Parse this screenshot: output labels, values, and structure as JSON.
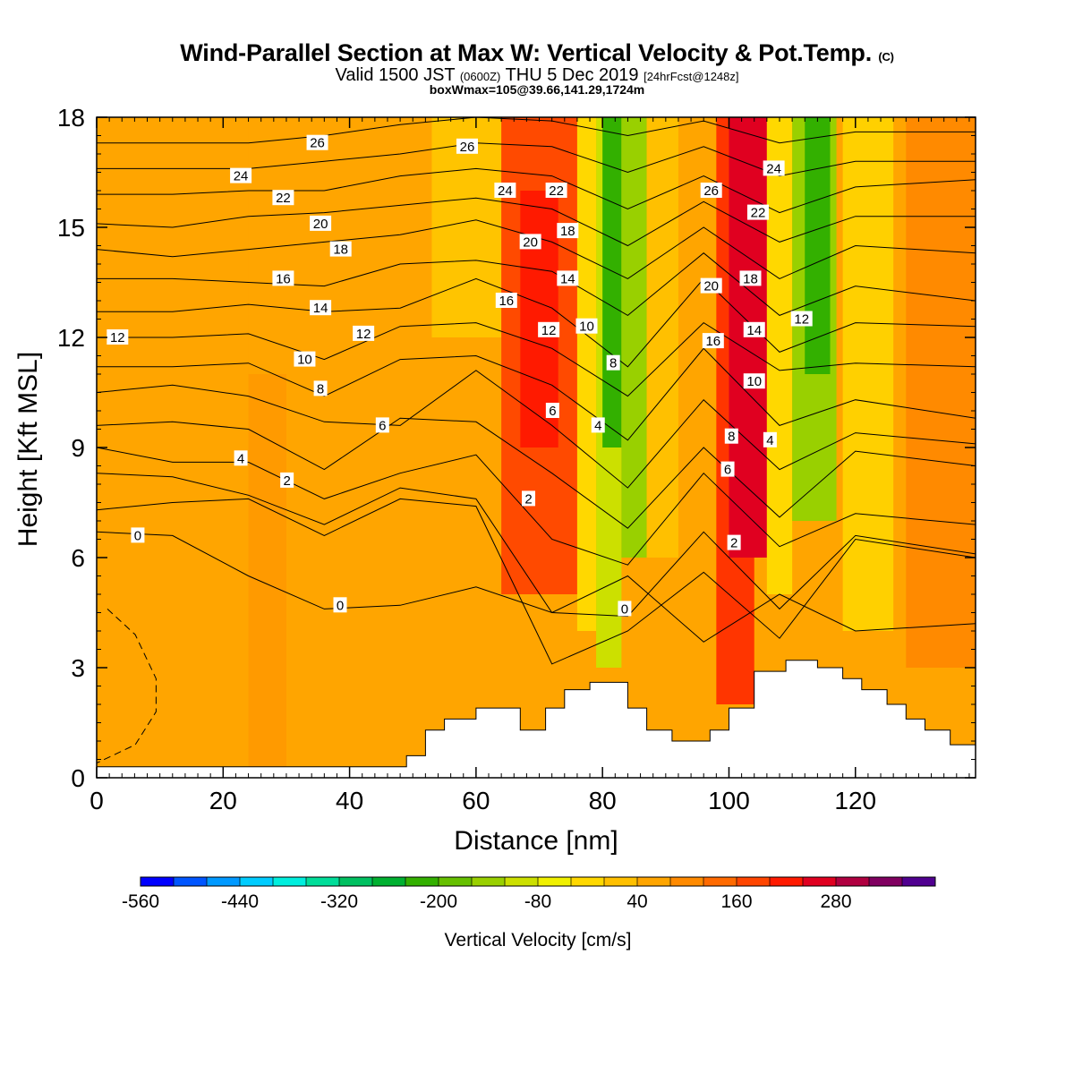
{
  "titles": {
    "main": "Wind-Parallel Section at Max W: Vertical Velocity & Pot.Temp.",
    "copyright": "(C)",
    "valid_prefix": "Valid 1500 JST",
    "valid_utc": "(0600Z)",
    "valid_date": "THU 5 Dec 2019",
    "forecast": "[24hrFcst@1248z]",
    "box": "boxWmax=105@39.66,141.29,1724m"
  },
  "colors": {
    "background_field": "#FFA500",
    "terrain": "#FFFFFF",
    "contour": "#000000"
  },
  "chart_data": {
    "type": "heatmap",
    "xlabel": "Distance [nm]",
    "ylabel": "Height [Kft MSL]",
    "xlim": [
      0,
      139
    ],
    "ylim": [
      0,
      18
    ],
    "x_ticks": [
      "0",
      "20",
      "40",
      "60",
      "80",
      "100",
      "120"
    ],
    "y_ticks": [
      "0",
      "3",
      "6",
      "9",
      "12",
      "15",
      "18"
    ],
    "colorbar": {
      "label": "Vertical Velocity [cm/s]",
      "tick_labels": [
        "-560",
        "-440",
        "-320",
        "-200",
        "-80",
        "40",
        "160",
        "280"
      ],
      "colors": [
        "#0000FF",
        "#0055FF",
        "#0099FF",
        "#00CCFF",
        "#00EEDD",
        "#00DD99",
        "#00C060",
        "#00B030",
        "#33B000",
        "#66C000",
        "#99D000",
        "#CCE000",
        "#F0F000",
        "#FFD800",
        "#FFC000",
        "#FFA500",
        "#FF8A00",
        "#FF6A00",
        "#FF4500",
        "#FF1A00",
        "#E00020",
        "#B00040",
        "#800060",
        "#500090"
      ]
    },
    "bands": [
      {
        "x": [
          0,
          24
        ],
        "z_bottom": 0,
        "z_top": 18,
        "color": "#FFA500"
      },
      {
        "x": [
          24,
          30
        ],
        "z_bottom": 0,
        "z_top": 11,
        "color": "#FF9A00"
      },
      {
        "x": [
          53,
          64
        ],
        "z_bottom": 12,
        "z_top": 18,
        "color": "#FFC400"
      },
      {
        "x": [
          64,
          76
        ],
        "z_bottom": 5,
        "z_top": 18,
        "color": "#FF4A00"
      },
      {
        "x": [
          67,
          73
        ],
        "z_bottom": 9,
        "z_top": 16,
        "color": "#FF1A00"
      },
      {
        "x": [
          76,
          79
        ],
        "z_bottom": 4,
        "z_top": 18,
        "color": "#FFD800"
      },
      {
        "x": [
          79,
          83
        ],
        "z_bottom": 3,
        "z_top": 18,
        "color": "#CCE000"
      },
      {
        "x": [
          80,
          83
        ],
        "z_bottom": 9,
        "z_top": 18,
        "color": "#33B000"
      },
      {
        "x": [
          83,
          87
        ],
        "z_bottom": 6,
        "z_top": 18,
        "color": "#99D000"
      },
      {
        "x": [
          87,
          92
        ],
        "z_bottom": 6,
        "z_top": 18,
        "color": "#FFC000"
      },
      {
        "x": [
          98,
          104
        ],
        "z_bottom": 2,
        "z_top": 18,
        "color": "#FF3500"
      },
      {
        "x": [
          100,
          106
        ],
        "z_bottom": 6,
        "z_top": 18,
        "color": "#E00020"
      },
      {
        "x": [
          106,
          110
        ],
        "z_bottom": 5,
        "z_top": 18,
        "color": "#FFD800"
      },
      {
        "x": [
          110,
          117
        ],
        "z_bottom": 7,
        "z_top": 18,
        "color": "#99D000"
      },
      {
        "x": [
          112,
          116
        ],
        "z_bottom": 11,
        "z_top": 18,
        "color": "#33B000"
      },
      {
        "x": [
          118,
          126
        ],
        "z_bottom": 4,
        "z_top": 18,
        "color": "#FFD000"
      },
      {
        "x": [
          128,
          139
        ],
        "z_bottom": 3,
        "z_top": 18,
        "color": "#FF8A00"
      }
    ],
    "terrain": {
      "x": [
        0,
        48,
        49,
        52,
        55,
        60,
        67,
        71,
        74,
        78,
        84,
        87,
        91,
        97,
        100,
        104,
        109,
        114,
        118,
        121,
        125,
        128,
        131,
        135,
        139
      ],
      "z": [
        0.3,
        0.3,
        0.6,
        1.3,
        1.6,
        1.9,
        1.3,
        1.9,
        2.4,
        2.6,
        1.9,
        1.3,
        1.0,
        1.3,
        1.9,
        2.9,
        3.2,
        3.0,
        2.7,
        2.4,
        2.0,
        1.6,
        1.3,
        0.9,
        0.6
      ]
    },
    "isentropes": [
      {
        "label": "0",
        "z": [
          6.7,
          6.6,
          5.5,
          4.6,
          4.7,
          5.2,
          4.5,
          5.5,
          3.7,
          5.0,
          4.0,
          4.2
        ]
      },
      {
        "label": "0",
        "z": [
          7.3,
          7.5,
          7.6,
          6.6,
          7.6,
          7.4,
          3.1,
          4.0,
          5.6,
          3.8,
          6.5,
          6.0
        ]
      },
      {
        "label": "2",
        "z": [
          8.3,
          8.2,
          7.7,
          6.9,
          7.9,
          7.6,
          4.5,
          4.4,
          6.7,
          4.6,
          6.6,
          6.1
        ]
      },
      {
        "label": "4",
        "z": [
          9.0,
          8.6,
          8.6,
          7.6,
          8.3,
          8.8,
          6.5,
          5.8,
          8.3,
          6.3,
          7.2,
          6.9
        ]
      },
      {
        "label": "6",
        "z": [
          9.6,
          9.7,
          9.5,
          8.4,
          9.8,
          9.7,
          8.3,
          6.8,
          9.0,
          7.1,
          8.9,
          8.5
        ]
      },
      {
        "label": "8",
        "z": [
          10.5,
          10.7,
          10.4,
          9.7,
          9.6,
          11.1,
          9.6,
          7.9,
          10.3,
          8.4,
          9.4,
          9.1
        ]
      },
      {
        "label": "10",
        "z": [
          11.2,
          11.2,
          11.3,
          10.4,
          11.4,
          11.5,
          10.7,
          9.2,
          11.7,
          9.6,
          10.3,
          9.8
        ]
      },
      {
        "label": "12",
        "z": [
          12.0,
          12.0,
          12.1,
          11.4,
          12.3,
          12.4,
          11.7,
          10.4,
          12.4,
          11.1,
          11.3,
          11.2
        ]
      },
      {
        "label": "14",
        "z": [
          12.7,
          12.7,
          12.9,
          12.7,
          12.8,
          13.6,
          12.8,
          11.2,
          13.6,
          11.6,
          12.4,
          12.3
        ]
      },
      {
        "label": "16",
        "z": [
          13.6,
          13.6,
          13.5,
          13.4,
          14.0,
          14.1,
          13.8,
          12.6,
          14.3,
          12.6,
          13.4,
          13.0
        ]
      },
      {
        "label": "18",
        "z": [
          14.4,
          14.2,
          14.4,
          14.6,
          14.8,
          15.2,
          14.6,
          13.6,
          15.0,
          13.6,
          14.5,
          14.3
        ]
      },
      {
        "label": "20",
        "z": [
          15.1,
          15.0,
          15.3,
          15.4,
          15.6,
          15.8,
          15.5,
          14.5,
          15.7,
          14.6,
          15.3,
          15.3
        ]
      },
      {
        "label": "22",
        "z": [
          15.9,
          15.9,
          16.0,
          16.0,
          16.4,
          16.6,
          16.4,
          15.5,
          16.4,
          15.4,
          16.1,
          16.3
        ]
      },
      {
        "label": "24",
        "z": [
          16.6,
          16.6,
          16.6,
          16.8,
          17.0,
          17.3,
          17.2,
          16.5,
          17.2,
          16.4,
          16.8,
          16.8
        ]
      },
      {
        "label": "26",
        "z": [
          17.3,
          17.3,
          17.3,
          17.5,
          17.8,
          18.0,
          17.9,
          17.5,
          17.9,
          17.3,
          17.6,
          17.6
        ]
      }
    ],
    "isentrope_x": [
      0,
      12,
      24,
      36,
      48,
      60,
      72,
      84,
      96,
      108,
      120,
      139
    ],
    "contour_labels": [
      {
        "text": "0",
        "x": 6.5,
        "z": 6.6
      },
      {
        "text": "0",
        "x": 38.5,
        "z": 4.7
      },
      {
        "text": "0",
        "x": 83.5,
        "z": 4.6
      },
      {
        "text": "2",
        "x": 30.1,
        "z": 8.1
      },
      {
        "text": "2",
        "x": 68.3,
        "z": 7.6
      },
      {
        "text": "2",
        "x": 100.8,
        "z": 6.4
      },
      {
        "text": "4",
        "x": 22.8,
        "z": 8.7
      },
      {
        "text": "4",
        "x": 79.3,
        "z": 9.6
      },
      {
        "text": "4",
        "x": 106.5,
        "z": 9.2
      },
      {
        "text": "6",
        "x": 45.2,
        "z": 9.6
      },
      {
        "text": "6",
        "x": 72.1,
        "z": 10.0
      },
      {
        "text": "6",
        "x": 99.8,
        "z": 8.4
      },
      {
        "text": "8",
        "x": 35.4,
        "z": 10.6
      },
      {
        "text": "8",
        "x": 81.7,
        "z": 11.3
      },
      {
        "text": "8",
        "x": 100.4,
        "z": 9.3
      },
      {
        "text": "10",
        "x": 32.9,
        "z": 11.4
      },
      {
        "text": "10",
        "x": 77.5,
        "z": 12.3
      },
      {
        "text": "10",
        "x": 104.0,
        "z": 10.8
      },
      {
        "text": "12",
        "x": 3.3,
        "z": 12.0
      },
      {
        "text": "12",
        "x": 42.2,
        "z": 12.1
      },
      {
        "text": "12",
        "x": 71.5,
        "z": 12.2
      },
      {
        "text": "12",
        "x": 111.5,
        "z": 12.5
      },
      {
        "text": "14",
        "x": 35.4,
        "z": 12.8
      },
      {
        "text": "14",
        "x": 74.5,
        "z": 13.6
      },
      {
        "text": "14",
        "x": 104.0,
        "z": 12.2
      },
      {
        "text": "16",
        "x": 29.5,
        "z": 13.6
      },
      {
        "text": "16",
        "x": 64.8,
        "z": 13.0
      },
      {
        "text": "16",
        "x": 97.5,
        "z": 11.9
      },
      {
        "text": "18",
        "x": 38.6,
        "z": 14.4
      },
      {
        "text": "18",
        "x": 74.5,
        "z": 14.9
      },
      {
        "text": "18",
        "x": 103.4,
        "z": 13.6
      },
      {
        "text": "20",
        "x": 35.4,
        "z": 15.1
      },
      {
        "text": "20",
        "x": 68.6,
        "z": 14.6
      },
      {
        "text": "20",
        "x": 97.2,
        "z": 13.4
      },
      {
        "text": "22",
        "x": 29.5,
        "z": 15.8
      },
      {
        "text": "22",
        "x": 72.7,
        "z": 16.0
      },
      {
        "text": "22",
        "x": 104.6,
        "z": 15.4
      },
      {
        "text": "24",
        "x": 22.8,
        "z": 16.4
      },
      {
        "text": "24",
        "x": 64.6,
        "z": 16.0
      },
      {
        "text": "24",
        "x": 107.1,
        "z": 16.6
      },
      {
        "text": "26",
        "x": 34.9,
        "z": 17.3
      },
      {
        "text": "26",
        "x": 58.6,
        "z": 17.2
      },
      {
        "text": "26",
        "x": 97.2,
        "z": 16.0
      }
    ],
    "dashed_contour": {
      "x": [
        1.7,
        6.1,
        9.4,
        9.4,
        6.1,
        0.0
      ],
      "z": [
        4.6,
        3.9,
        2.7,
        1.8,
        0.9,
        0.4
      ]
    }
  }
}
